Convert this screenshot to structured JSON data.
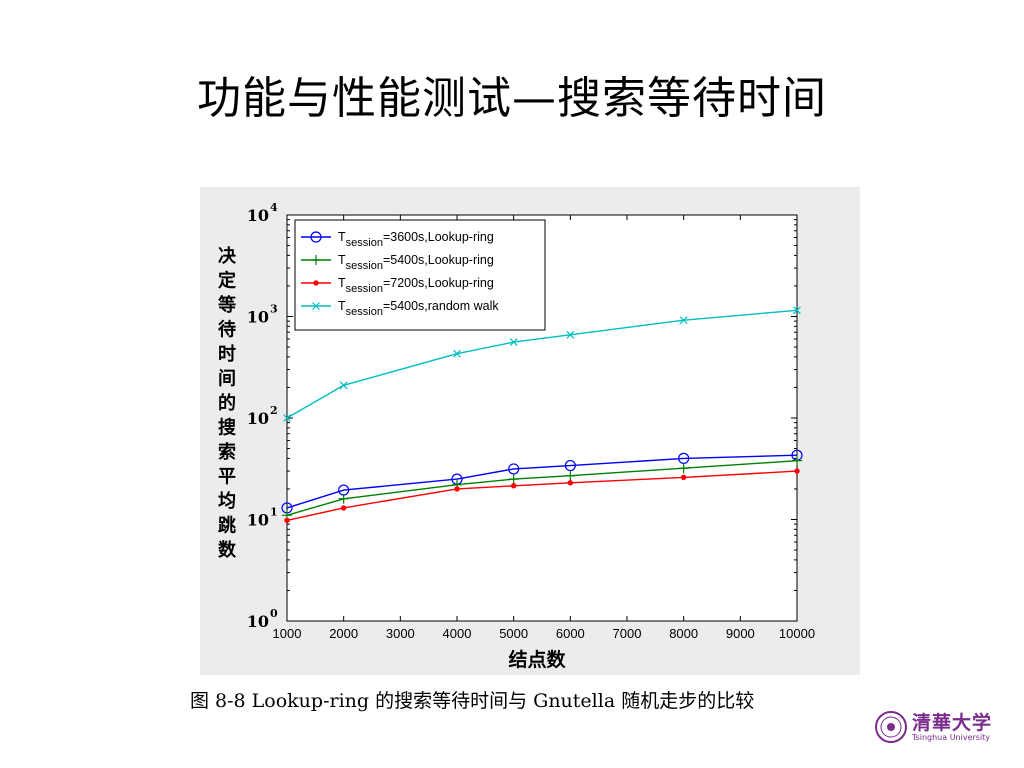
{
  "slide": {
    "title": "功能与性能测试—搜索等待时间"
  },
  "caption": "图 8-8 Lookup-ring 的搜索等待时间与 Gnutella 随机走步的比较",
  "logo": {
    "name": "清華大学",
    "english": "Tsinghua University"
  },
  "colors": {
    "background": "#ffffff",
    "chart_panel": "#ececec",
    "logo": "#7a2c8a"
  },
  "chart_data": {
    "type": "line",
    "title": "",
    "xlabel": "结点数",
    "ylabel": "决定等待时间的搜索平均跳数",
    "xscale": "linear",
    "yscale": "log",
    "xlim": [
      1000,
      10000
    ],
    "ylim": [
      1,
      10000
    ],
    "x_ticks": [
      1000,
      2000,
      3000,
      4000,
      5000,
      6000,
      7000,
      8000,
      9000,
      10000
    ],
    "y_ticks": [
      {
        "value": 1,
        "base": "10",
        "exp": "0"
      },
      {
        "value": 10,
        "base": "10",
        "exp": "1"
      },
      {
        "value": 100,
        "base": "10",
        "exp": "2"
      },
      {
        "value": 1000,
        "base": "10",
        "exp": "3"
      },
      {
        "value": 10000,
        "base": "10",
        "exp": "4"
      }
    ],
    "grid": false,
    "legend_position": "top-left",
    "x": [
      1000,
      2000,
      4000,
      5000,
      6000,
      8000,
      10000
    ],
    "series": [
      {
        "label_main": "T",
        "label_sub": "session",
        "label_rest": "=3600s,Lookup-ring",
        "color": "#0000ff",
        "marker": "circle",
        "values": [
          13,
          19.5,
          25,
          31.5,
          34,
          40,
          43
        ]
      },
      {
        "label_main": "T",
        "label_sub": "session",
        "label_rest": "=5400s,Lookup-ring",
        "color": "#008000",
        "marker": "plus",
        "values": [
          11,
          16,
          22,
          25,
          27,
          32,
          38
        ]
      },
      {
        "label_main": "T",
        "label_sub": "session",
        "label_rest": "=7200s,Lookup-ring",
        "color": "#ff0000",
        "marker": "dot",
        "values": [
          9.8,
          13,
          20,
          21.5,
          23,
          26,
          30
        ]
      },
      {
        "label_main": "T",
        "label_sub": "session",
        "label_rest": "=5400s,random walk",
        "color": "#00bfbf",
        "marker": "x",
        "values": [
          100,
          210,
          430,
          560,
          660,
          920,
          1150
        ]
      }
    ]
  }
}
